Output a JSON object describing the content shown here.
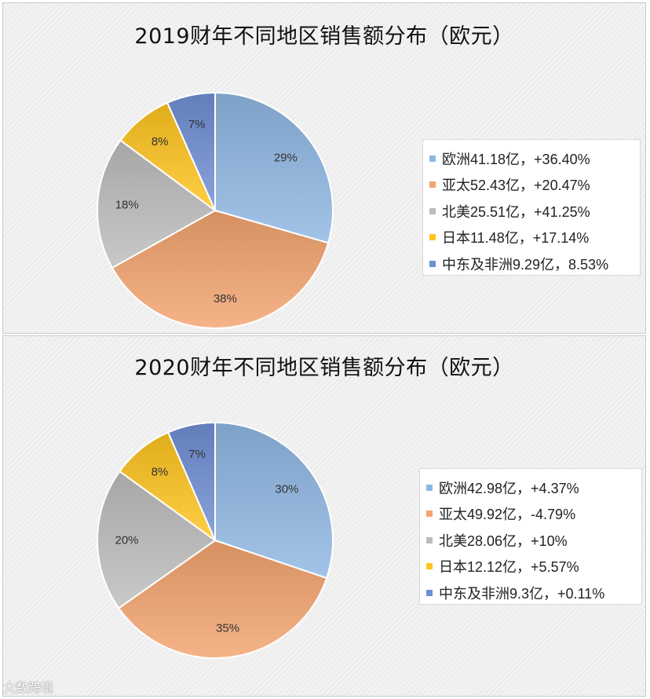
{
  "chart_data": [
    {
      "type": "pie",
      "title": "2019财年不同地区销售额分布（欧元）",
      "slices": [
        {
          "legend": "欧洲41.18亿，+36.40%",
          "value": 41.18,
          "label": "29%",
          "color": "#8fb7e3"
        },
        {
          "legend": "亚太52.43亿，+20.47%",
          "value": 52.43,
          "label": "38%",
          "color": "#f3a46e"
        },
        {
          "legend": "北美25.51亿，+41.25%",
          "value": 25.51,
          "label": "18%",
          "color": "#bdbdbd"
        },
        {
          "legend": "日本11.48亿，+17.14%",
          "value": 11.48,
          "label": "8%",
          "color": "#ffc51f"
        },
        {
          "legend": "中东及非洲9.29亿，8.53%",
          "value": 9.29,
          "label": "7%",
          "color": "#6f8fd4"
        }
      ],
      "legend_position": "right"
    },
    {
      "type": "pie",
      "title": "2020财年不同地区销售额分布（欧元）",
      "slices": [
        {
          "legend": "欧洲42.98亿，+4.37%",
          "value": 42.98,
          "label": "30%",
          "color": "#8fb7e3"
        },
        {
          "legend": "亚太49.92亿，-4.79%",
          "value": 49.92,
          "label": "35%",
          "color": "#f3a46e"
        },
        {
          "legend": "北美28.06亿，+10%",
          "value": 28.06,
          "label": "20%",
          "color": "#bdbdbd"
        },
        {
          "legend": "日本12.12亿，+5.57%",
          "value": 12.12,
          "label": "8%",
          "color": "#ffc51f"
        },
        {
          "legend": "中东及非洲9.3亿，+0.11%",
          "value": 9.3,
          "label": "7%",
          "color": "#6f8fd4"
        }
      ],
      "legend_position": "right"
    }
  ],
  "watermark": "大数跨境"
}
